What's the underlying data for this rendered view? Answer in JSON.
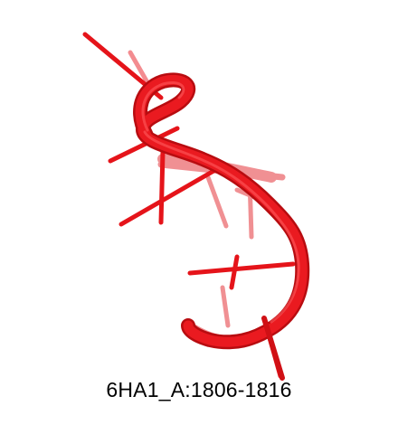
{
  "caption": "6HA1_A:1806-1816",
  "image": {
    "subject": "rna-strand-cartoon",
    "colors": {
      "primary": "#e5141a",
      "faded": "#f07a7f",
      "background": "#ffffff"
    }
  }
}
